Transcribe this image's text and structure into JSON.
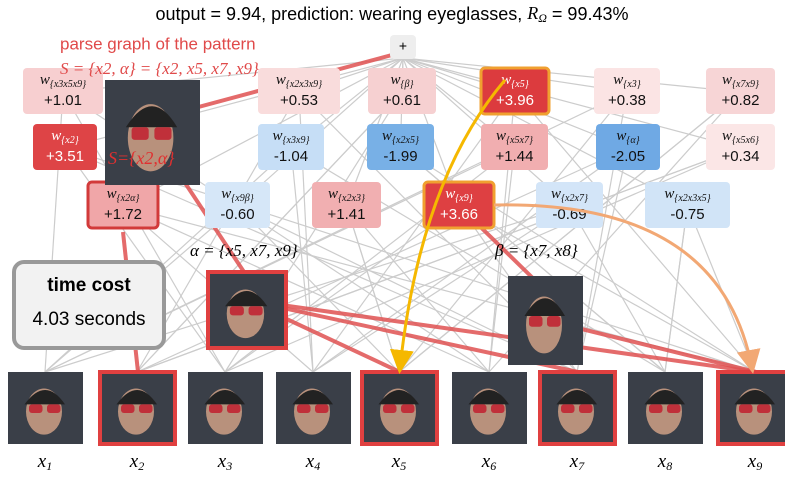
{
  "title": {
    "prefix": "output = 9.94, prediction: wearing eyeglasses, ",
    "symbol": "R",
    "symbol_sub": "Ω",
    "suffix": " = 99.43%"
  },
  "root_node": "+",
  "annotation": {
    "line1": "parse graph of the pattern",
    "line2": "S = {x2, α} = {x2, x5, x7, x9}",
    "image_label": "S={x2,α}"
  },
  "alpha_label": "α = {x5, x7, x9}",
  "beta_label": "β = {x7, x8}",
  "time_cost": {
    "title": "time cost",
    "value": "4.03 seconds"
  },
  "nodes": [
    {
      "symbol": "w",
      "sub": "{x3x5x9}",
      "value": "+1.01",
      "color": "#f7cfd0"
    },
    {
      "symbol": "w",
      "sub": "{x2x3x9}",
      "value": "+0.53",
      "color": "#f9dcdc"
    },
    {
      "symbol": "w",
      "sub": "{β}",
      "value": "+0.61",
      "color": "#f6d0d1"
    },
    {
      "symbol": "w",
      "sub": "{x5}",
      "value": "+3.96",
      "color": "#dc3b3e"
    },
    {
      "symbol": "w",
      "sub": "{x3}",
      "value": "+0.38",
      "color": "#fbe4e4"
    },
    {
      "symbol": "w",
      "sub": "{x7x9}",
      "value": "+0.82",
      "color": "#f7d5d6"
    },
    {
      "symbol": "w",
      "sub": "{x2}",
      "value": "+3.51",
      "color": "#de4446"
    },
    {
      "symbol": "w",
      "sub": "{x3x9}",
      "value": "-1.04",
      "color": "#c6def6"
    },
    {
      "symbol": "w",
      "sub": "{x2x5}",
      "value": "-1.99",
      "color": "#78b0e6"
    },
    {
      "symbol": "w",
      "sub": "{x5x7}",
      "value": "+1.44",
      "color": "#f1aeb0"
    },
    {
      "symbol": "w",
      "sub": "{α}",
      "value": "-2.05",
      "color": "#6fa9e4"
    },
    {
      "symbol": "w",
      "sub": "{x5x6}",
      "value": "+0.34",
      "color": "#fbe6e6"
    },
    {
      "symbol": "w",
      "sub": "{x2α}",
      "value": "+1.72",
      "color": "#f0a6a8"
    },
    {
      "symbol": "w",
      "sub": "{x9β}",
      "value": "-0.60",
      "color": "#d6e7f8"
    },
    {
      "symbol": "w",
      "sub": "{x2x3}",
      "value": "+1.41",
      "color": "#f1afb1"
    },
    {
      "symbol": "w",
      "sub": "{x9}",
      "value": "+3.66",
      "color": "#de4042"
    },
    {
      "symbol": "w",
      "sub": "{x2x7}",
      "value": "-0.69",
      "color": "#d3e5f8"
    },
    {
      "symbol": "w",
      "sub": "{x2x3x5}",
      "value": "-0.75",
      "color": "#d1e4f7"
    }
  ],
  "patches": [
    {
      "symbol": "x",
      "sub": "1"
    },
    {
      "symbol": "x",
      "sub": "2"
    },
    {
      "symbol": "x",
      "sub": "3"
    },
    {
      "symbol": "x",
      "sub": "4"
    },
    {
      "symbol": "x",
      "sub": "5"
    },
    {
      "symbol": "x",
      "sub": "6"
    },
    {
      "symbol": "x",
      "sub": "7"
    },
    {
      "symbol": "x",
      "sub": "8"
    },
    {
      "symbol": "x",
      "sub": "9"
    }
  ]
}
